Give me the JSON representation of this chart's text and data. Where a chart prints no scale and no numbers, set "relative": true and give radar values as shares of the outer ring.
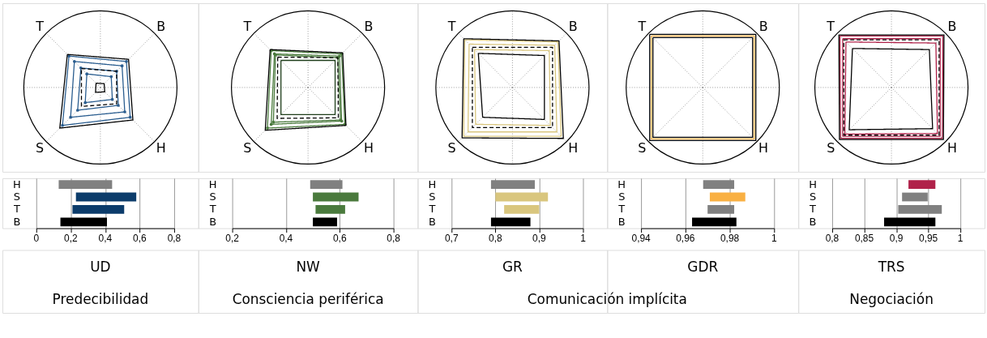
{
  "chart_data": [
    {
      "type": "radar",
      "relative": true,
      "categories": [
        "T",
        "B",
        "H",
        "S"
      ],
      "series": [
        {
          "color": "#2a5d8f",
          "marker": "circle",
          "values": [
            0.58,
            0.48,
            0.55,
            0.7
          ]
        },
        {
          "color": "#2a5d8f",
          "marker": "circle",
          "values": [
            0.48,
            0.4,
            0.45,
            0.55
          ]
        },
        {
          "color": "#2a5d8f",
          "marker": "circle",
          "values": [
            0.36,
            0.3,
            0.33,
            0.42
          ]
        },
        {
          "color": "#2a5d8f",
          "marker": "circle",
          "values": [
            0.25,
            0.2,
            0.22,
            0.28
          ]
        },
        {
          "color": "#000000",
          "line_style": "dashed",
          "values": [
            0.35,
            0.3,
            0.3,
            0.35
          ]
        },
        {
          "color": "#000000",
          "values": [
            0.61,
            0.52,
            0.6,
            0.75
          ]
        },
        {
          "color": "#000000",
          "values": [
            0.08,
            0.07,
            0.08,
            0.09
          ]
        }
      ]
    },
    {
      "type": "radar",
      "relative": true,
      "categories": [
        "T",
        "B",
        "H",
        "S"
      ],
      "series": [
        {
          "color": "#4a7a3d",
          "marker": "circle",
          "values": [
            0.68,
            0.62,
            0.68,
            0.75
          ]
        },
        {
          "color": "#4a7a3d",
          "marker": "circle",
          "values": [
            0.62,
            0.58,
            0.62,
            0.68
          ]
        },
        {
          "color": "#4a7a3d",
          "marker": "circle",
          "values": [
            0.6,
            0.55,
            0.6,
            0.64
          ]
        },
        {
          "color": "#000000",
          "line_style": "dashed",
          "values": [
            0.56,
            0.55,
            0.56,
            0.57
          ]
        },
        {
          "color": "#000000",
          "values": [
            0.7,
            0.64,
            0.7,
            0.79
          ]
        },
        {
          "color": "#1e3d1a",
          "values": [
            0.5,
            0.5,
            0.5,
            0.5
          ]
        }
      ]
    },
    {
      "type": "radar",
      "relative": true,
      "categories": [
        "T",
        "B",
        "H",
        "S"
      ],
      "series": [
        {
          "color": "#d9c67e",
          "values": [
            0.88,
            0.84,
            0.9,
            0.9
          ]
        },
        {
          "color": "#d9c67e",
          "values": [
            0.8,
            0.78,
            0.82,
            0.82
          ]
        },
        {
          "color": "#d9c67e",
          "values": [
            0.7,
            0.68,
            0.7,
            0.68
          ]
        },
        {
          "color": "#000000",
          "line_style": "dashed",
          "values": [
            0.74,
            0.74,
            0.74,
            0.74
          ]
        },
        {
          "color": "#000000",
          "values": [
            0.9,
            0.86,
            0.94,
            0.93
          ]
        },
        {
          "color": "#000000",
          "values": [
            0.63,
            0.59,
            0.59,
            0.55
          ]
        }
      ]
    },
    {
      "type": "radar",
      "relative": true,
      "categories": [
        "T",
        "B",
        "H",
        "S"
      ],
      "series": [
        {
          "color": "#f9b042",
          "values": [
            0.95,
            0.95,
            0.95,
            0.95
          ]
        },
        {
          "color": "#000000",
          "values": [
            0.98,
            0.98,
            0.98,
            0.98
          ]
        },
        {
          "color": "#000000",
          "values": [
            0.92,
            0.92,
            0.92,
            0.92
          ]
        }
      ]
    },
    {
      "type": "radar",
      "relative": true,
      "categories": [
        "T",
        "B",
        "H",
        "S"
      ],
      "series": [
        {
          "color": "#b0224a",
          "values": [
            0.95,
            0.95,
            0.94,
            0.94
          ]
        },
        {
          "color": "#b0224a",
          "values": [
            0.9,
            0.9,
            0.9,
            0.9
          ]
        },
        {
          "color": "#b0224a",
          "values": [
            0.84,
            0.82,
            0.85,
            0.86
          ]
        },
        {
          "color": "#000000",
          "line_style": "dashed",
          "values": [
            0.88,
            0.88,
            0.88,
            0.88
          ]
        },
        {
          "color": "#000000",
          "values": [
            0.97,
            0.97,
            0.96,
            0.96
          ]
        },
        {
          "color": "#000000",
          "values": [
            0.72,
            0.7,
            0.76,
            0.78
          ]
        }
      ]
    },
    {
      "type": "bar",
      "orientation": "horizontal",
      "title": "UD",
      "subtitle": "Predecibilidad",
      "categories": [
        "H",
        "S",
        "T",
        "B"
      ],
      "base": [
        0.13,
        0.23,
        0.21,
        0.14
      ],
      "values": [
        0.31,
        0.35,
        0.3,
        0.27
      ],
      "colors": [
        "#808080",
        "#0c3c6b",
        "#0c3c6b",
        "#000000"
      ],
      "xlim": [
        0,
        0.8
      ],
      "xticks": [
        0,
        {
          "value": 0.2,
          "label": "0,2"
        },
        {
          "value": 0.4,
          "label": "0,4"
        },
        {
          "value": 0.6,
          "label": "0,6"
        },
        {
          "value": 0.8,
          "label": "0,8"
        }
      ],
      "grid": "x"
    },
    {
      "type": "bar",
      "orientation": "horizontal",
      "title": "NW",
      "subtitle": "Consciencia periférica",
      "categories": [
        "H",
        "S",
        "T",
        "B"
      ],
      "base": [
        0.49,
        0.5,
        0.51,
        0.5
      ],
      "values": [
        0.12,
        0.17,
        0.11,
        0.09
      ],
      "colors": [
        "#808080",
        "#4a7a3d",
        "#4a7a3d",
        "#000000"
      ],
      "xlim": [
        0.2,
        0.8
      ],
      "xticks": [
        {
          "value": 0.2,
          "label": "0,2"
        },
        {
          "value": 0.4,
          "label": "0,4"
        },
        {
          "value": 0.6,
          "label": "0,6"
        },
        {
          "value": 0.8,
          "label": "0,8"
        }
      ],
      "grid": "x"
    },
    {
      "type": "bar",
      "orientation": "horizontal",
      "title": "GR",
      "annotations": [
        "Comunicación implícita"
      ],
      "categories": [
        "H",
        "S",
        "T",
        "B"
      ],
      "base": [
        0.79,
        0.8,
        0.82,
        0.79
      ],
      "values": [
        0.1,
        0.12,
        0.08,
        0.09
      ],
      "colors": [
        "#808080",
        "#d9c67e",
        "#d9c67e",
        "#000000"
      ],
      "xlim": [
        0.7,
        1
      ],
      "xticks": [
        {
          "value": 0.7,
          "label": "0,7"
        },
        {
          "value": 0.8,
          "label": "0,8"
        },
        {
          "value": 0.9,
          "label": "0,9"
        },
        1
      ],
      "grid": "x"
    },
    {
      "type": "bar",
      "orientation": "horizontal",
      "title": "GDR",
      "categories": [
        "H",
        "S",
        "T",
        "B"
      ],
      "base": [
        0.968,
        0.971,
        0.97,
        0.963
      ],
      "values": [
        0.014,
        0.016,
        0.012,
        0.02
      ],
      "colors": [
        "#808080",
        "#f9b042",
        "#808080",
        "#000000"
      ],
      "xlim": [
        0.94,
        1
      ],
      "xticks": [
        {
          "value": 0.94,
          "label": "0,94"
        },
        {
          "value": 0.96,
          "label": "0,96"
        },
        {
          "value": 0.98,
          "label": "0,98"
        },
        1
      ],
      "grid": "x"
    },
    {
      "type": "bar",
      "orientation": "horizontal",
      "title": "TRS",
      "subtitle": "Negociación",
      "categories": [
        "H",
        "S",
        "T",
        "B"
      ],
      "base": [
        0.919,
        0.909,
        0.903,
        0.881
      ],
      "values": [
        0.042,
        0.04,
        0.068,
        0.08
      ],
      "colors": [
        "#b0224a",
        "#808080",
        "#808080",
        "#000000"
      ],
      "xlim": [
        0.8,
        1
      ],
      "xticks": [
        {
          "value": 0.8,
          "label": "0,8"
        },
        {
          "value": 0.85,
          "label": "0,85"
        },
        {
          "value": 0.9,
          "label": "0,9"
        },
        {
          "value": 0.95,
          "label": "0,95"
        },
        1
      ],
      "grid": "x"
    }
  ]
}
